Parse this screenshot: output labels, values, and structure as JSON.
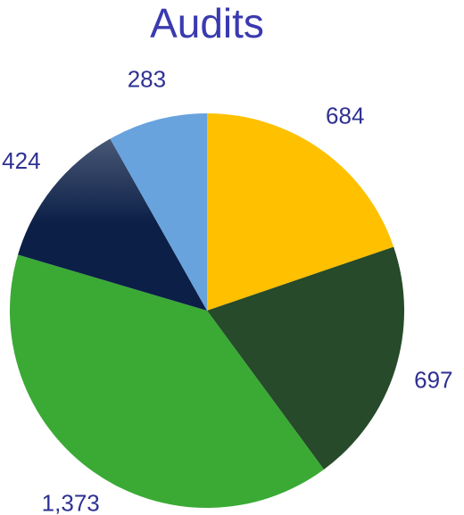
{
  "chart_data": {
    "type": "pie",
    "title": "Audits",
    "categories": [
      null,
      null,
      null,
      null,
      null
    ],
    "values": [
      684,
      697,
      1373,
      424,
      283
    ],
    "value_labels": [
      "684",
      "697",
      "1,373",
      "424",
      "283"
    ],
    "colors": [
      "#ffc000",
      "#264a2a",
      "#3aaa35",
      "#0b1f47",
      "#68a3dd"
    ]
  }
}
